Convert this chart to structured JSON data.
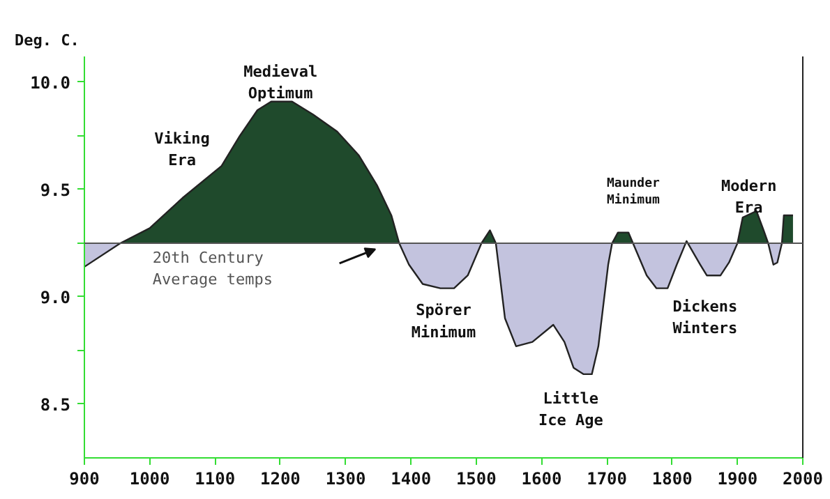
{
  "chart_data": {
    "type": "area",
    "ylabel": "Deg. C.",
    "x": [
      900,
      955,
      1000,
      1050,
      1110,
      1138,
      1165,
      1186,
      1218,
      1250,
      1287,
      1320,
      1348,
      1370,
      1382,
      1397,
      1418,
      1445,
      1466,
      1487,
      1508,
      1521,
      1530,
      1544,
      1561,
      1586,
      1618,
      1635,
      1649,
      1664,
      1677,
      1687,
      1702,
      1708,
      1717,
      1733,
      1740,
      1761,
      1776,
      1793,
      1807,
      1822,
      1843,
      1853,
      1874,
      1887,
      1900,
      1908,
      1929,
      1940,
      1947,
      1955,
      1961,
      1968,
      1971,
      1985
    ],
    "series": [
      {
        "color": "#1f4a2c",
        "values": [
          null,
          9.25,
          9.32,
          9.46,
          9.61,
          9.75,
          9.87,
          9.91,
          9.91,
          9.85,
          9.77,
          9.66,
          9.52,
          9.38,
          9.25,
          null,
          null,
          null,
          null,
          null,
          9.25,
          9.31,
          9.25,
          null,
          null,
          null,
          null,
          null,
          null,
          null,
          null,
          null,
          null,
          9.25,
          9.3,
          9.3,
          9.25,
          null,
          null,
          null,
          null,
          null,
          null,
          null,
          null,
          null,
          9.25,
          9.37,
          9.4,
          9.31,
          9.25,
          null,
          null,
          9.25,
          9.38,
          9.38
        ]
      },
      {
        "color": "#c3c3de",
        "values": [
          9.14,
          9.25,
          null,
          null,
          null,
          null,
          null,
          null,
          null,
          null,
          null,
          null,
          null,
          null,
          9.25,
          9.15,
          9.06,
          9.04,
          9.04,
          9.1,
          9.25,
          null,
          9.25,
          8.9,
          8.77,
          8.79,
          8.87,
          8.79,
          8.67,
          8.64,
          8.64,
          8.77,
          9.15,
          9.25,
          null,
          null,
          9.25,
          9.1,
          9.04,
          9.04,
          9.15,
          9.26,
          9.15,
          9.1,
          9.1,
          9.16,
          9.25,
          null,
          null,
          null,
          9.25,
          9.15,
          9.16,
          9.25,
          null,
          null
        ]
      }
    ],
    "xlim": [
      900,
      2000
    ],
    "xticks": [
      900,
      1000,
      1100,
      1200,
      1300,
      1400,
      1500,
      1600,
      1700,
      1800,
      1900,
      2000
    ],
    "ylim": [
      8.25,
      10.12
    ],
    "yticks": [
      {
        "value": 8.5,
        "label": "8.5"
      },
      {
        "value": 8.75,
        "label": null
      },
      {
        "value": 9.0,
        "label": "9.0"
      },
      {
        "value": 9.25,
        "label": null
      },
      {
        "value": 9.5,
        "label": "9.5"
      },
      {
        "value": 9.75,
        "label": null
      },
      {
        "value": 10.0,
        "label": "10.0"
      }
    ],
    "ref_lines": [
      {
        "axis": "y",
        "value": 9.25,
        "label": "20th Century\nAverage temps",
        "color": "#555555"
      }
    ],
    "annotations": [
      "Viking\nEra",
      "Medieval\nOptimum",
      "Spörer\nMinimum",
      "Little\nIce Age",
      "Maunder\nMinimum",
      "Dickens\nWinters",
      "Modern\nEra"
    ],
    "grid": false
  }
}
